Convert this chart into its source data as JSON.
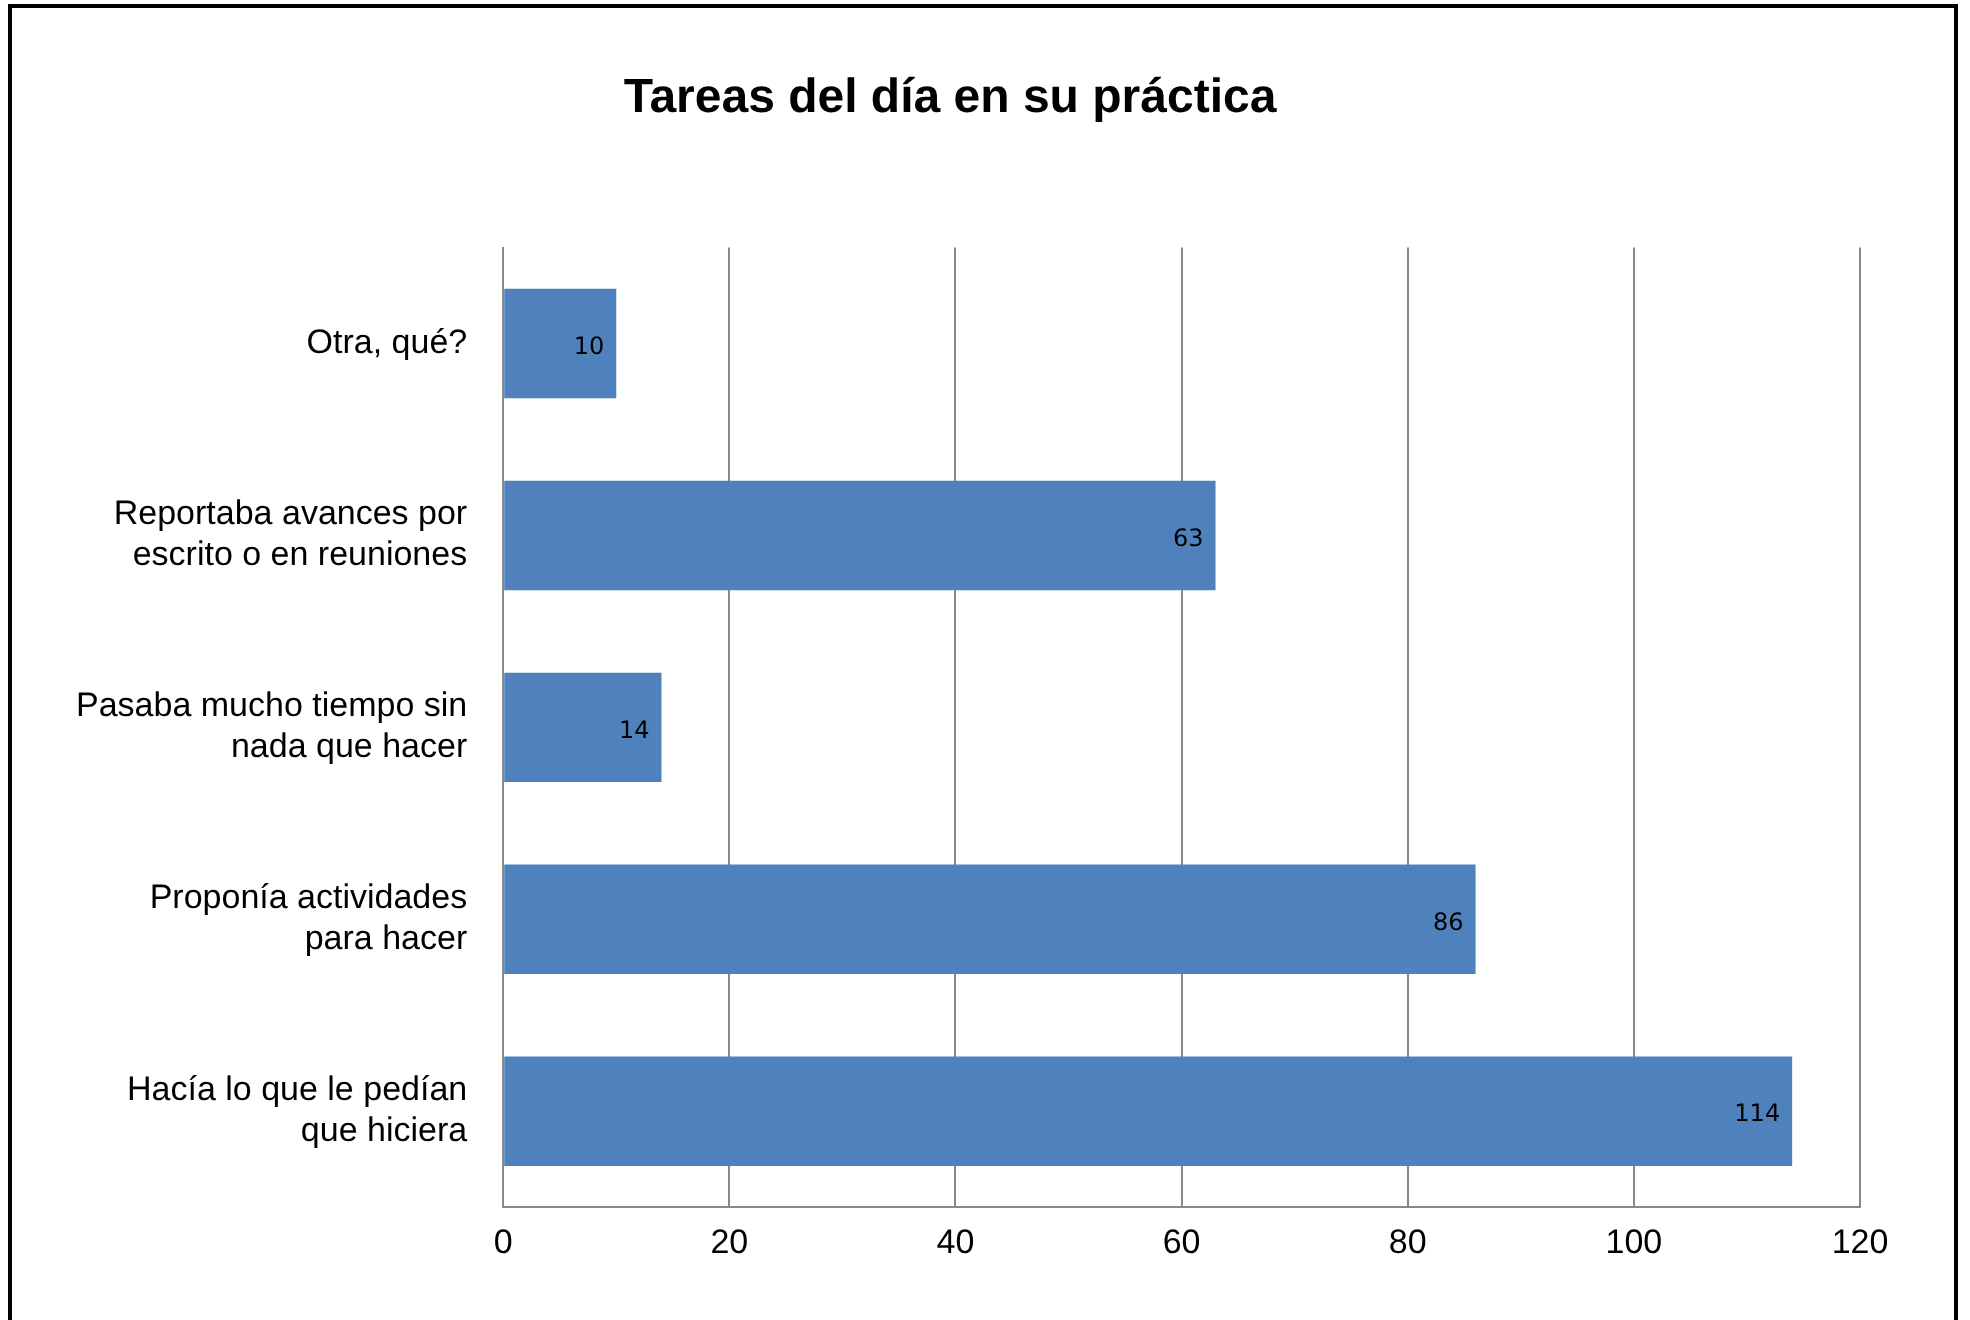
{
  "chart_data": {
    "type": "bar",
    "orientation": "horizontal",
    "title": "Tareas del día en su práctica",
    "categories": [
      "Otra, qué?",
      "Reportaba avances por escrito o en reuniones",
      "Pasaba mucho tiempo sin nada que hacer",
      "Proponía actividades para hacer",
      "Hacía lo que le pedían que hiciera"
    ],
    "values": [
      10,
      63,
      14,
      86,
      114
    ],
    "color": "#4f81bd",
    "xlim": [
      0,
      120
    ],
    "xticks": [
      0,
      20,
      40,
      60,
      80,
      100,
      120
    ],
    "grid": "x",
    "legend": false,
    "data_labels": true
  }
}
